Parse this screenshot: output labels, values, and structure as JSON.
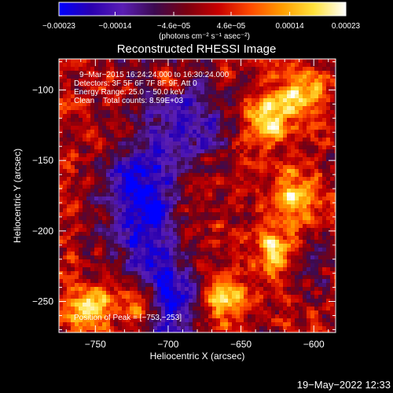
{
  "chart_data": {
    "type": "heatmap",
    "title": "Reconstructed RHESSI Image",
    "xlabel": "Heliocentric X (arcsec)",
    "ylabel": "Heliocentric Y (arcsec)",
    "xlim": [
      -775,
      -585
    ],
    "ylim": [
      -272,
      -78
    ],
    "xticks": [
      -750,
      -700,
      -650,
      -600
    ],
    "xtick_labels": [
      "−750",
      "−700",
      "−650",
      "−600"
    ],
    "yticks": [
      -100,
      -150,
      -200,
      -250
    ],
    "ytick_labels": [
      "−100",
      "−150",
      "−200",
      "−250"
    ],
    "colorbar": {
      "range": [
        -0.00023,
        0.00023
      ],
      "ticks": [
        -0.00023,
        -0.00014,
        -4.6e-05,
        4.6e-05,
        0.00014,
        0.00023
      ],
      "tick_labels": [
        "−0.00023",
        "−0.00014",
        "−4.6e−05",
        "4.6e−05",
        "0.00014",
        "0.00023"
      ],
      "unit_label": "(photons cm⁻² s⁻¹ asec⁻²)",
      "colormap": [
        "#0000ff",
        "#2a00b0",
        "#5a1eb4",
        "#3c0a50",
        "#7a0010",
        "#c80000",
        "#ff4a00",
        "#ff9d00",
        "#ffe23c",
        "#ffffff"
      ]
    },
    "grid": false,
    "annotations": [
      "9−Mar−2015 16:24:24.000 to 16:30:24.000",
      "Detectors: 3F 5F 6F 7F 8F 9F, Att 0",
      "Energy Range: 25.0 − 50.0 keV",
      "Clean    Total counts: 8.59E+03",
      "Position of Peak = [−753,−253]"
    ],
    "peak": [
      -753,
      -253
    ],
    "features": {
      "dark_channel_x": [
        -725,
        -690
      ],
      "bright_regions": [
        {
          "x": -755,
          "y": -255
        },
        {
          "x": -720,
          "y": -250
        },
        {
          "x": -630,
          "y": -120
        },
        {
          "x": -610,
          "y": -100
        },
        {
          "x": -615,
          "y": -175
        },
        {
          "x": -660,
          "y": -250
        },
        {
          "x": -625,
          "y": -215
        },
        {
          "x": -700,
          "y": -90
        }
      ],
      "faint_regions": [
        {
          "x": -710,
          "y": -185
        },
        {
          "x": -700,
          "y": -240
        },
        {
          "x": -603,
          "y": -225
        },
        {
          "x": -728,
          "y": -160
        },
        {
          "x": -670,
          "y": -130
        }
      ]
    }
  },
  "footer": {
    "timestamp": "19−May−2022 12:33"
  }
}
